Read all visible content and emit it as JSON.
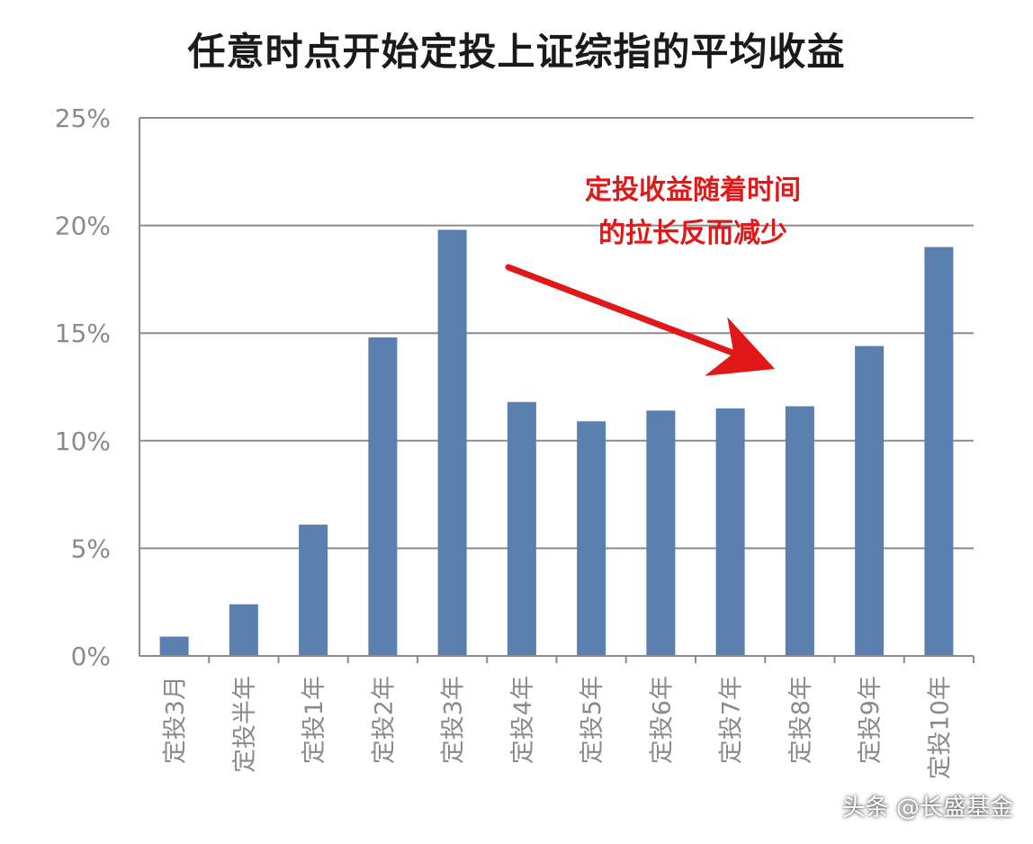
{
  "chart_data": {
    "type": "bar",
    "title": "任意时点开始定投上证综指的平均收益",
    "categories": [
      "定投3月",
      "定投半年",
      "定投1年",
      "定投2年",
      "定投3年",
      "定投4年",
      "定投5年",
      "定投6年",
      "定投7年",
      "定投8年",
      "定投9年",
      "定投10年"
    ],
    "values": [
      0.9,
      2.4,
      6.1,
      14.8,
      19.8,
      11.8,
      10.9,
      11.4,
      11.5,
      11.6,
      14.4,
      19.0
    ],
    "unit": "%",
    "ylim": [
      0,
      25
    ],
    "yticks": [
      "0%",
      "5%",
      "10%",
      "15%",
      "20%",
      "25%"
    ],
    "ytick_values": [
      0,
      5,
      10,
      15,
      20,
      25
    ],
    "grid": true,
    "bar_color": "#5b7fae",
    "annotation": {
      "line1": "定投收益随着时间",
      "line2": "的拉长反而减少",
      "color": "#e01818"
    }
  },
  "watermark": "头条 @长盛基金"
}
